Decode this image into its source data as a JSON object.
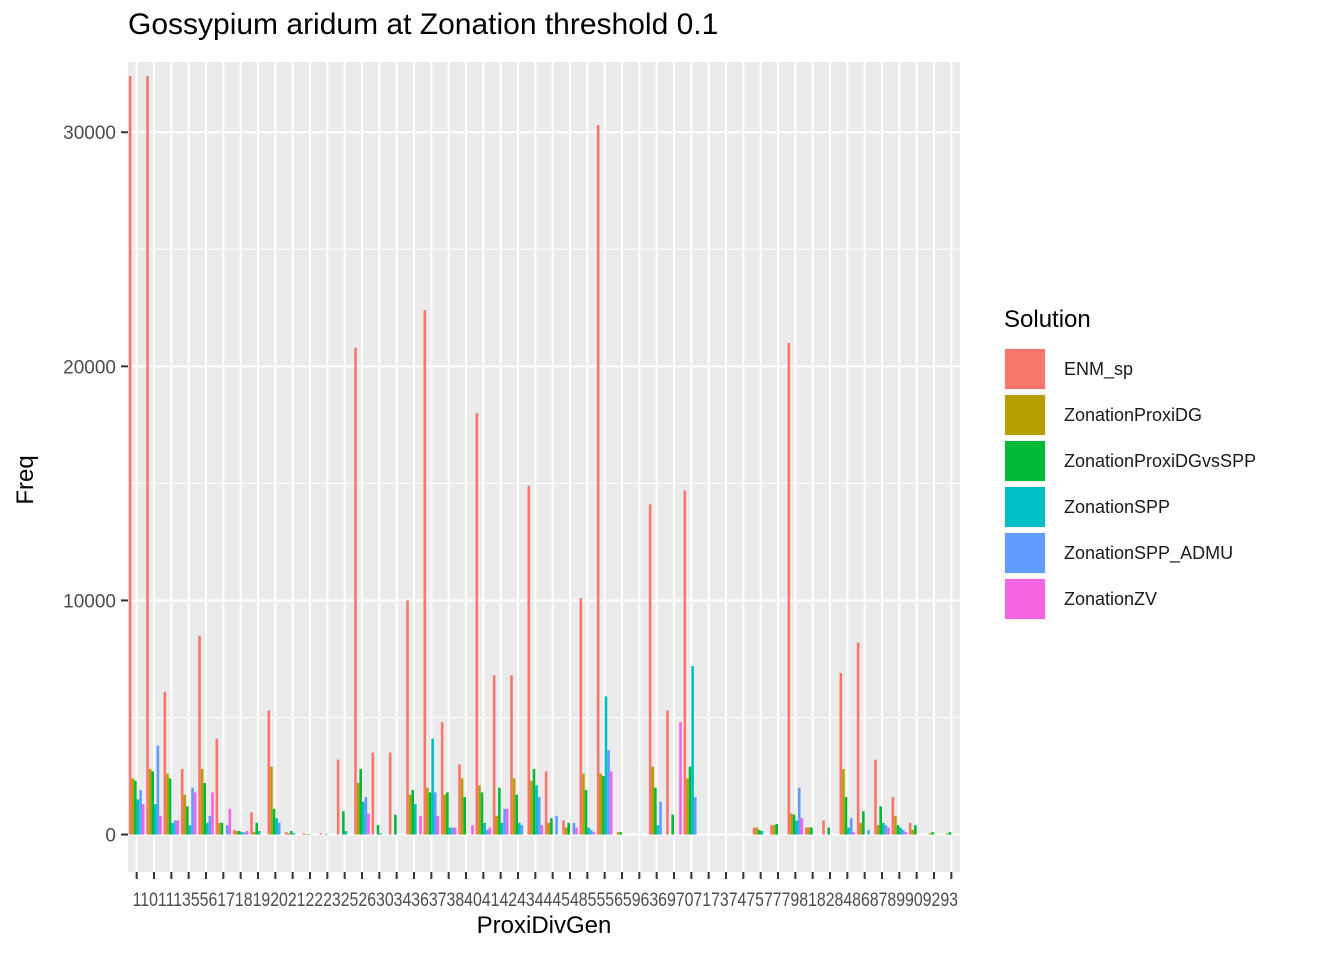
{
  "chart_data": {
    "type": "bar",
    "title": "Gossypium aridum at Zonation threshold 0.1",
    "xlabel": "ProxiDivGen",
    "ylabel": "Freq",
    "ylim": [
      0,
      33000
    ],
    "yticks": [
      0,
      10000,
      20000,
      30000
    ],
    "grid": true,
    "legend_position": "right",
    "legend_title": "Solution",
    "x_tick_text": "1101113556171819202122232526303436373840414243444548555659636970717374757779818284868789909293",
    "categories": [
      "1",
      "10",
      "11",
      "13",
      "15",
      "16",
      "17",
      "18",
      "19",
      "20",
      "21",
      "22",
      "23",
      "25",
      "26",
      "30",
      "34",
      "36",
      "37",
      "38",
      "40",
      "41",
      "42",
      "43",
      "44",
      "45",
      "48",
      "55",
      "56",
      "59",
      "63",
      "69",
      "70",
      "71",
      "73",
      "74",
      "75",
      "77",
      "79",
      "81",
      "82",
      "84",
      "86",
      "87",
      "89",
      "90",
      "92",
      "93"
    ],
    "series": [
      {
        "name": "ENM_sp",
        "color": "#F8766D",
        "values": [
          32400,
          32400,
          6100,
          2800,
          8500,
          4100,
          200,
          950,
          5300,
          100,
          50,
          50,
          3200,
          20800,
          3500,
          3500,
          10000,
          22400,
          4800,
          3000,
          18000,
          6800,
          6800,
          14900,
          2700,
          600,
          10100,
          30300,
          0,
          0,
          14100,
          5300,
          14700,
          0,
          0,
          0,
          300,
          400,
          21000,
          300,
          600,
          6900,
          8200,
          3200,
          1600,
          500,
          0,
          0
        ]
      },
      {
        "name": "ZonationProxiDG",
        "color": "#B79F00",
        "values": [
          2400,
          2800,
          2600,
          1700,
          2800,
          500,
          150,
          100,
          2900,
          50,
          20,
          0,
          0,
          2200,
          0,
          0,
          1700,
          2000,
          1700,
          2400,
          2100,
          800,
          2400,
          2300,
          500,
          300,
          2600,
          2600,
          100,
          0,
          2900,
          0,
          2400,
          0,
          0,
          0,
          300,
          400,
          900,
          300,
          0,
          2800,
          500,
          400,
          800,
          200,
          50,
          50
        ]
      },
      {
        "name": "ZonationProxiDGvsSPP",
        "color": "#00BA38",
        "values": [
          2300,
          2700,
          2400,
          1200,
          2200,
          500,
          150,
          500,
          1100,
          150,
          20,
          20,
          1000,
          2800,
          400,
          850,
          1900,
          1800,
          1800,
          1600,
          1800,
          2000,
          1700,
          2800,
          700,
          500,
          1900,
          2500,
          100,
          0,
          2000,
          850,
          2900,
          0,
          0,
          0,
          200,
          450,
          850,
          300,
          300,
          1600,
          1000,
          1200,
          400,
          400,
          100,
          100
        ]
      },
      {
        "name": "ZonationSPP",
        "color": "#00BFC4",
        "values": [
          1500,
          1300,
          500,
          400,
          500,
          0,
          100,
          150,
          700,
          50,
          0,
          0,
          150,
          1400,
          50,
          0,
          1300,
          4100,
          300,
          0,
          500,
          500,
          500,
          2100,
          0,
          0,
          300,
          5900,
          0,
          0,
          400,
          0,
          7200,
          0,
          0,
          0,
          150,
          0,
          600,
          0,
          0,
          300,
          0,
          500,
          300,
          0,
          0,
          0
        ]
      },
      {
        "name": "ZonationSPP_ADMU",
        "color": "#619CFF",
        "values": [
          1900,
          3800,
          600,
          2000,
          800,
          400,
          100,
          0,
          500,
          0,
          0,
          0,
          0,
          1600,
          0,
          0,
          0,
          1800,
          300,
          0,
          200,
          1100,
          400,
          1600,
          800,
          500,
          200,
          3600,
          0,
          0,
          1400,
          0,
          1600,
          0,
          0,
          0,
          0,
          0,
          2000,
          0,
          0,
          700,
          200,
          400,
          200,
          0,
          0,
          0
        ]
      },
      {
        "name": "ZonationZV",
        "color": "#F564E3",
        "values": [
          1300,
          800,
          600,
          1800,
          1800,
          1100,
          150,
          0,
          0,
          0,
          0,
          0,
          0,
          900,
          0,
          0,
          800,
          800,
          300,
          400,
          300,
          1100,
          0,
          400,
          0,
          300,
          100,
          2700,
          0,
          0,
          0,
          4800,
          0,
          0,
          0,
          0,
          0,
          0,
          700,
          0,
          0,
          100,
          0,
          300,
          100,
          0,
          0,
          0
        ]
      }
    ]
  }
}
